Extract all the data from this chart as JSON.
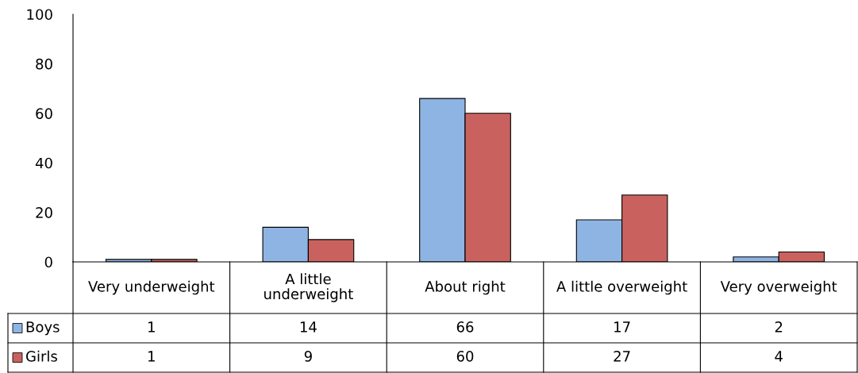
{
  "chart_data": {
    "type": "bar",
    "categories": [
      "Very underweight",
      "A little underweight",
      "About right",
      "A little overweight",
      "Very overweight"
    ],
    "series": [
      {
        "name": "Boys",
        "color": "#8eb4e3",
        "values": [
          1,
          14,
          66,
          17,
          2
        ]
      },
      {
        "name": "Girls",
        "color": "#c9625f",
        "values": [
          1,
          9,
          60,
          27,
          4
        ]
      }
    ],
    "ylim": [
      0,
      100
    ],
    "yticks": [
      0,
      20,
      40,
      60,
      80,
      100
    ],
    "data_labels": true,
    "legend": "bottom",
    "grid": false
  }
}
